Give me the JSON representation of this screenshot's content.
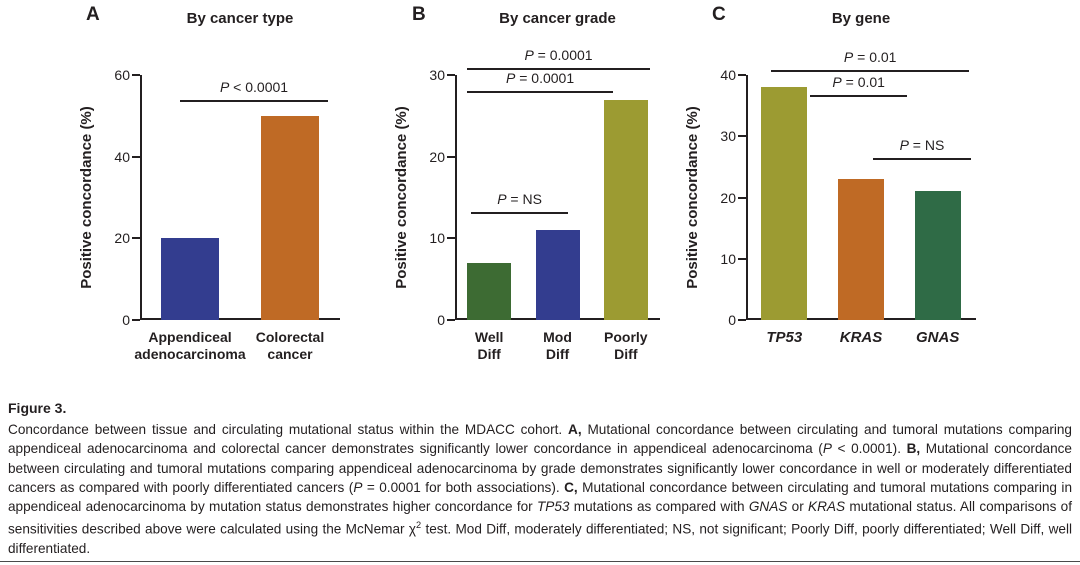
{
  "figure": {
    "caption_title": "Figure 3.",
    "caption_segments": [
      {
        "t": "Concordance between tissue and circulating mutational status within the MDACC cohort. "
      },
      {
        "t": "A,",
        "b": true
      },
      {
        "t": " Mutational concordance between circulating and tumoral mutations comparing appendiceal adenocarcinoma and colorectal cancer demonstrates significantly lower concordance in appendiceal adenocarcinoma ("
      },
      {
        "t": "P",
        "i": true
      },
      {
        "t": " < 0.0001). "
      },
      {
        "t": "B,",
        "b": true
      },
      {
        "t": " Mutational concordance between circulating and tumoral mutations comparing appendiceal adenocarcinoma by grade demonstrates significantly lower concordance in well or moderately differentiated cancers as compared with poorly differentiated cancers ("
      },
      {
        "t": "P",
        "i": true
      },
      {
        "t": " = 0.0001 for both associations). "
      },
      {
        "t": "C,",
        "b": true
      },
      {
        "t": " Mutational concordance between circulating and tumoral mutations comparing in appendiceal adenocarcinoma by mutation status demonstrates higher concordance for "
      },
      {
        "t": "TP53",
        "i": true
      },
      {
        "t": " mutations as compared with "
      },
      {
        "t": "GNAS",
        "i": true
      },
      {
        "t": " or "
      },
      {
        "t": "KRAS",
        "i": true
      },
      {
        "t": " mutational status. All comparisons of sensitivities described above were calculated using the McNemar χ"
      },
      {
        "t": "2",
        "sup": true
      },
      {
        "t": " test. Mod Diff, moderately differentiated; NS, not significant; Poorly Diff, poorly differentiated; Well Diff, well differentiated."
      }
    ]
  },
  "chart_data": [
    {
      "type": "bar",
      "panel_letter": "A",
      "title": "By cancer type",
      "ylabel": "Positive concordance (%)",
      "ylim": [
        0,
        60
      ],
      "yticks": [
        0,
        20,
        40,
        60
      ],
      "categories": [
        "Appendiceal\nadenocarcinoma",
        "Colorectal\ncancer"
      ],
      "values": [
        20,
        50
      ],
      "colors": [
        "#333d8f",
        "#bf6a25"
      ],
      "italic_categories": false,
      "grid": false,
      "brackets": [
        {
          "from": "Appendiceal adenocarcinoma",
          "to": "Colorectal cancer",
          "x1f": 0.2,
          "x2f": 0.94,
          "y": 54,
          "label": "P < 0.0001"
        }
      ]
    },
    {
      "type": "bar",
      "panel_letter": "B",
      "title": "By cancer grade",
      "ylabel": "Positive concordance (%)",
      "ylim": [
        0,
        30
      ],
      "yticks": [
        0,
        10,
        20,
        30
      ],
      "categories": [
        "Well\nDiff",
        "Mod\nDiff",
        "Poorly\nDiff"
      ],
      "values": [
        7,
        11,
        27
      ],
      "colors": [
        "#3d6b33",
        "#333d8f",
        "#9c9b32"
      ],
      "italic_categories": false,
      "grid": false,
      "brackets": [
        {
          "from": "Well Diff",
          "to": "Mod Diff",
          "x1f": 0.08,
          "x2f": 0.55,
          "y": 13.2,
          "label": "P = NS"
        },
        {
          "from": "Well Diff",
          "to": "Poorly Diff",
          "x1f": 0.06,
          "x2f": 0.77,
          "y": 28.0,
          "label": "P = 0.0001"
        },
        {
          "from": "Mod Diff",
          "to": "Poorly Diff",
          "x1f": 0.06,
          "x2f": 0.95,
          "y": 30.8,
          "label": "P = 0.0001"
        }
      ]
    },
    {
      "type": "bar",
      "panel_letter": "C",
      "title": "By gene",
      "ylabel": "Positive concordance (%)",
      "ylim": [
        0,
        40
      ],
      "yticks": [
        0,
        10,
        20,
        30,
        40
      ],
      "categories": [
        "TP53",
        "KRAS",
        "GNAS"
      ],
      "values": [
        38,
        23,
        21
      ],
      "colors": [
        "#9c9b32",
        "#bf6a25",
        "#2f6b46"
      ],
      "italic_categories": true,
      "grid": false,
      "brackets": [
        {
          "from": "KRAS",
          "to": "GNAS",
          "x1f": 0.55,
          "x2f": 0.98,
          "y": 26.5,
          "label": "P = NS"
        },
        {
          "from": "TP53",
          "to": "KRAS",
          "x1f": 0.28,
          "x2f": 0.7,
          "y": 36.7,
          "label": "P = 0.01"
        },
        {
          "from": "TP53",
          "to": "GNAS",
          "x1f": 0.11,
          "x2f": 0.97,
          "y": 40.8,
          "label": "P = 0.01"
        }
      ]
    }
  ]
}
